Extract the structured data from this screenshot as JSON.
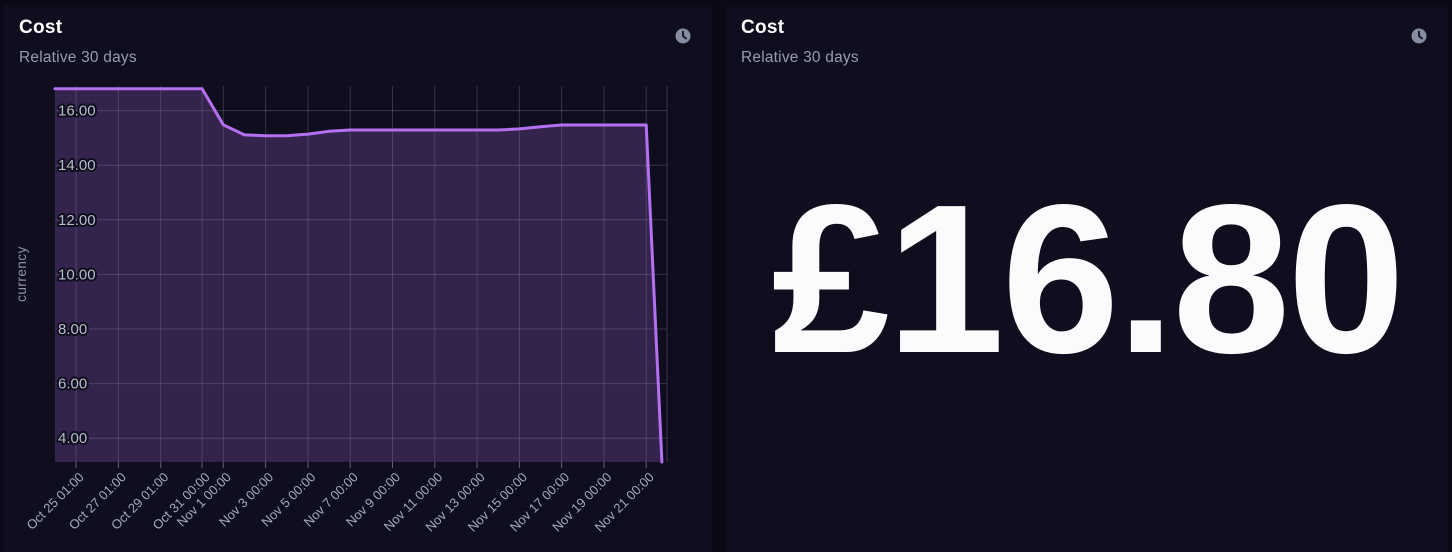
{
  "panels": {
    "left": {
      "title": "Cost",
      "subtitle": "Relative 30 days",
      "icon": "clock"
    },
    "right": {
      "title": "Cost",
      "subtitle": "Relative 30 days",
      "icon": "clock",
      "value": "£16.80"
    }
  },
  "colors": {
    "page_bg": "#0a0918",
    "panel_bg": "#0f0e1f",
    "title": "#ffffff",
    "subtitle": "#9a9ba9",
    "big_value": "#fbfbfd",
    "line": "#b470f0",
    "grid": "rgba(255,255,255,0.16)",
    "tick": "rgba(255,255,255,0.35)",
    "clock_icon": "#878da1"
  },
  "chart_data": {
    "type": "area",
    "title": "Cost",
    "subtitle": "Relative 30 days",
    "ylabel": "currency",
    "xlabel": "",
    "grid": true,
    "legend": "none",
    "x_unit": "days since Oct 24 01:00",
    "x_range": [
      0,
      28.94
    ],
    "y_range": [
      3.13,
      16.9
    ],
    "fill_opacity": 0.22,
    "line_width": 3,
    "y_ticks": [
      {
        "v": 16,
        "label": "16.00"
      },
      {
        "v": 14,
        "label": "14.00"
      },
      {
        "v": 12,
        "label": "12.00"
      },
      {
        "v": 10,
        "label": "10.00"
      },
      {
        "v": 8,
        "label": "8.00"
      },
      {
        "v": 6,
        "label": "6.00"
      },
      {
        "v": 4,
        "label": "4.00"
      }
    ],
    "x_ticks": [
      {
        "t": 1.0,
        "label": "Oct 25 01:00"
      },
      {
        "t": 3.0,
        "label": "Oct 27 01:00"
      },
      {
        "t": 5.0,
        "label": "Oct 29 01:00"
      },
      {
        "t": 6.958,
        "label": "Oct 31 00:00"
      },
      {
        "t": 7.958,
        "label": "Nov 1 00:00"
      },
      {
        "t": 9.958,
        "label": "Nov 3 00:00"
      },
      {
        "t": 11.958,
        "label": "Nov 5 00:00"
      },
      {
        "t": 13.958,
        "label": "Nov 7 00:00"
      },
      {
        "t": 15.958,
        "label": "Nov 9 00:00"
      },
      {
        "t": 17.958,
        "label": "Nov 11 00:00"
      },
      {
        "t": 19.958,
        "label": "Nov 13 00:00"
      },
      {
        "t": 21.958,
        "label": "Nov 15 00:00"
      },
      {
        "t": 23.958,
        "label": "Nov 17 00:00"
      },
      {
        "t": 25.958,
        "label": "Nov 19 00:00"
      },
      {
        "t": 27.958,
        "label": "Nov 21 00:00"
      }
    ],
    "series": [
      {
        "name": "cost",
        "points": [
          [
            0,
            16.8
          ],
          [
            6.958,
            16.8
          ],
          [
            7.958,
            15.48
          ],
          [
            8.958,
            15.11
          ],
          [
            9.958,
            15.08
          ],
          [
            10.958,
            15.08
          ],
          [
            11.958,
            15.14
          ],
          [
            12.958,
            15.24
          ],
          [
            13.958,
            15.29
          ],
          [
            20.958,
            15.29
          ],
          [
            21.958,
            15.33
          ],
          [
            22.958,
            15.41
          ],
          [
            23.958,
            15.47
          ],
          [
            27.958,
            15.47
          ],
          [
            28.7,
            3.13
          ]
        ]
      }
    ]
  }
}
